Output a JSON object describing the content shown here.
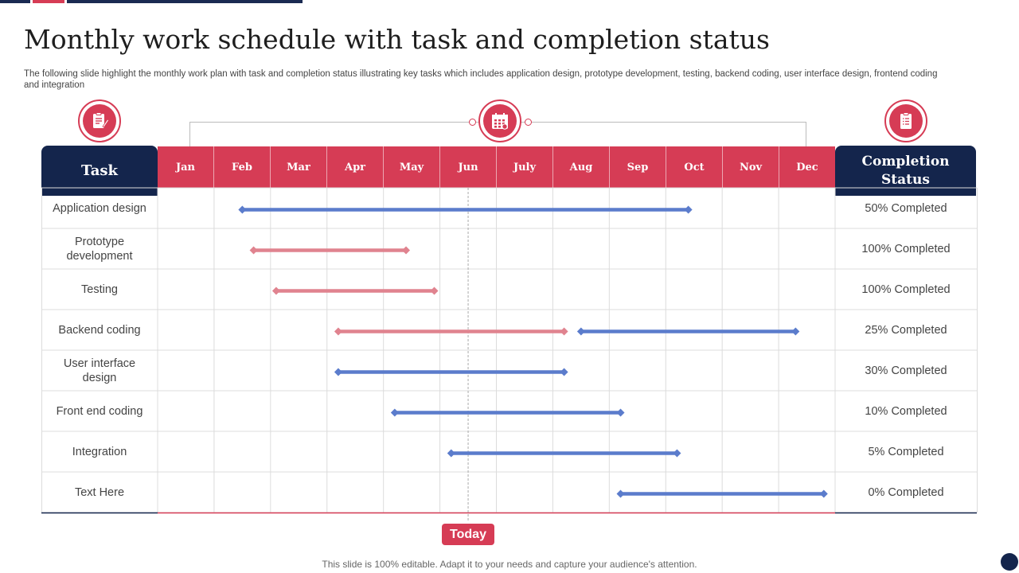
{
  "title": "Monthly work schedule with task and completion status",
  "subtitle": "The following slide highlight the monthly work plan with task and completion status illustrating key tasks which includes application design, prototype development, testing, backend coding, user interface design, frontend coding and integration",
  "icons": {
    "left": "clipboard-pen-icon",
    "middle": "calendar-icon",
    "right": "checklist-icon"
  },
  "colors": {
    "accent": "#d63c55",
    "navy": "#14254c",
    "bar_blue": "#5b7ccc",
    "bar_pink": "#e0838f"
  },
  "headers": {
    "task": "Task",
    "status_line1": "Completion",
    "status_line2": "Status"
  },
  "today_label": "Today",
  "footer": "This slide is 100% editable. Adapt it to your needs and capture your audience's attention.",
  "chart_data": {
    "type": "gantt",
    "months": [
      "Jan",
      "Feb",
      "Mar",
      "Apr",
      "May",
      "Jun",
      "July",
      "Aug",
      "Sep",
      "Oct",
      "Nov",
      "Dec"
    ],
    "today_month_index": 5.5,
    "tasks": [
      {
        "name": "Application design",
        "status": "50% Completed",
        "bars": [
          {
            "start": 1.5,
            "end": 9.4,
            "color": "blue"
          }
        ]
      },
      {
        "name": "Prototype development",
        "status": "100% Completed",
        "bars": [
          {
            "start": 1.7,
            "end": 4.4,
            "color": "pink"
          }
        ]
      },
      {
        "name": "Testing",
        "status": "100% Completed",
        "bars": [
          {
            "start": 2.1,
            "end": 4.9,
            "color": "pink"
          }
        ]
      },
      {
        "name": "Backend coding",
        "status": "25% Completed",
        "bars": [
          {
            "start": 3.2,
            "end": 7.2,
            "color": "pink"
          },
          {
            "start": 7.5,
            "end": 11.3,
            "color": "blue"
          }
        ]
      },
      {
        "name": "User interface design",
        "status": "30% Completed",
        "bars": [
          {
            "start": 3.2,
            "end": 7.2,
            "color": "blue"
          }
        ]
      },
      {
        "name": "Front end coding",
        "status": "10% Completed",
        "bars": [
          {
            "start": 4.2,
            "end": 8.2,
            "color": "blue"
          }
        ]
      },
      {
        "name": "Integration",
        "status": "5% Completed",
        "bars": [
          {
            "start": 5.2,
            "end": 9.2,
            "color": "blue"
          }
        ]
      },
      {
        "name": "Text Here",
        "status": "0% Completed",
        "bars": [
          {
            "start": 8.2,
            "end": 11.8,
            "color": "blue"
          }
        ]
      }
    ]
  }
}
